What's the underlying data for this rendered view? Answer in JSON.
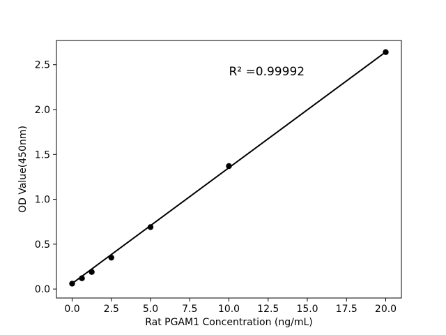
{
  "chart_data": {
    "type": "scatter",
    "title": "",
    "xlabel": "Rat PGAM1 Concentration (ng/mL)",
    "ylabel": "OD Value(450nm)",
    "xlim": [
      -1,
      21
    ],
    "ylim": [
      -0.1,
      2.77
    ],
    "grid": false,
    "legend": null,
    "x_ticks": [
      {
        "value": 0,
        "label": "0.0"
      },
      {
        "value": 2.5,
        "label": "2.5"
      },
      {
        "value": 5,
        "label": "5.0"
      },
      {
        "value": 7.5,
        "label": "7.5"
      },
      {
        "value": 10,
        "label": "10.0"
      },
      {
        "value": 12.5,
        "label": "12.5"
      },
      {
        "value": 15,
        "label": "15.0"
      },
      {
        "value": 17.5,
        "label": "17.5"
      },
      {
        "value": 20,
        "label": "20.0"
      }
    ],
    "y_ticks": [
      {
        "value": 0,
        "label": "0.0"
      },
      {
        "value": 0.5,
        "label": "0.5"
      },
      {
        "value": 1,
        "label": "1.0"
      },
      {
        "value": 1.5,
        "label": "1.5"
      },
      {
        "value": 2,
        "label": "2.0"
      },
      {
        "value": 2.5,
        "label": "2.5"
      }
    ],
    "points": [
      {
        "x": 0,
        "y": 0.06
      },
      {
        "x": 0.625,
        "y": 0.12
      },
      {
        "x": 1.25,
        "y": 0.19
      },
      {
        "x": 2.5,
        "y": 0.35
      },
      {
        "x": 5,
        "y": 0.69
      },
      {
        "x": 10,
        "y": 1.37
      },
      {
        "x": 20,
        "y": 2.64
      }
    ],
    "fit_line": {
      "x_start": 0,
      "x_end": 20,
      "slope": 0.129,
      "intercept": 0.062
    },
    "annotation": {
      "text": "R² =0.99992",
      "r_squared": 0.99992
    },
    "colors": {
      "marker": "#000000",
      "line": "#000000",
      "frame": "#000000",
      "text": "#000000",
      "background": "#ffffff"
    }
  }
}
